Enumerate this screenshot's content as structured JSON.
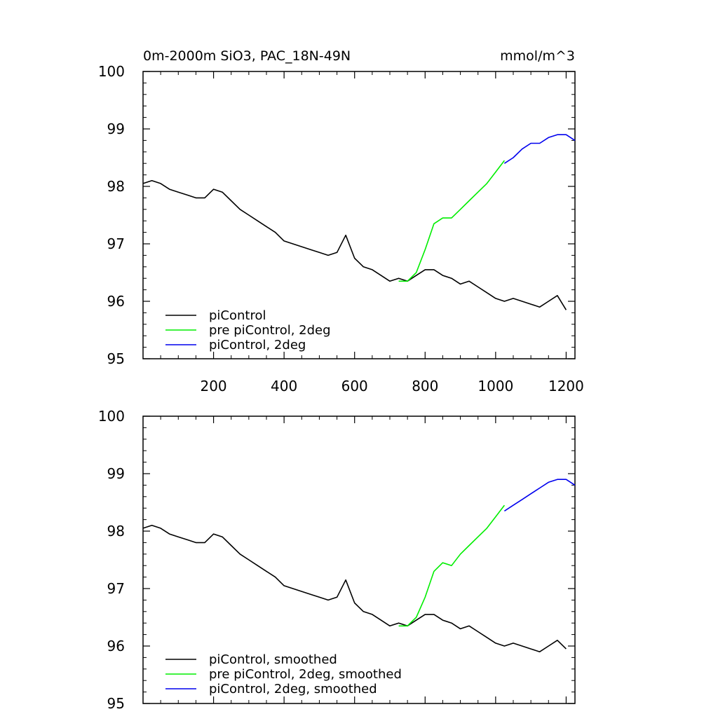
{
  "chart_data": [
    {
      "type": "line",
      "title": "0m-2000m SiO3, PAC_18N-49N",
      "units": "mmol/m^3",
      "xlabel": "",
      "ylabel": "",
      "xlim": [
        0,
        1225
      ],
      "ylim": [
        95,
        100
      ],
      "x_ticks": [
        200,
        400,
        600,
        800,
        1000,
        1200
      ],
      "y_ticks": [
        95,
        96,
        97,
        98,
        99,
        100
      ],
      "x_tick_labels": [
        "200",
        "400",
        "600",
        "800",
        "1000",
        "1200"
      ],
      "y_tick_labels": [
        "95",
        "96",
        "97",
        "98",
        "99",
        "100"
      ],
      "grid": false,
      "legend_position": "bottom-left",
      "series": [
        {
          "name": "piControl",
          "color": "#000000",
          "x": [
            0,
            25,
            50,
            75,
            100,
            125,
            150,
            175,
            200,
            225,
            250,
            275,
            300,
            325,
            350,
            375,
            400,
            425,
            450,
            475,
            500,
            525,
            550,
            575,
            600,
            625,
            650,
            675,
            700,
            725,
            750,
            775,
            800,
            825,
            850,
            875,
            900,
            925,
            950,
            975,
            1000,
            1025,
            1050,
            1075,
            1100,
            1125,
            1150,
            1175,
            1200
          ],
          "y": [
            98.05,
            98.1,
            98.05,
            97.95,
            97.9,
            97.85,
            97.8,
            97.8,
            97.95,
            97.9,
            97.75,
            97.6,
            97.5,
            97.4,
            97.3,
            97.2,
            97.05,
            97.0,
            96.95,
            96.9,
            96.85,
            96.8,
            96.85,
            97.15,
            96.75,
            96.6,
            96.55,
            96.45,
            96.35,
            96.4,
            96.35,
            96.45,
            96.55,
            96.55,
            96.45,
            96.4,
            96.3,
            96.35,
            96.25,
            96.15,
            96.05,
            96.0,
            96.05,
            96.0,
            95.95,
            95.9,
            96.0,
            96.1,
            95.85
          ]
        },
        {
          "name": "pre piControl, 2deg",
          "color": "#00ee00",
          "x": [
            725,
            750,
            775,
            800,
            825,
            850,
            875,
            900,
            925,
            950,
            975,
            1000,
            1025
          ],
          "y": [
            96.35,
            96.35,
            96.5,
            96.9,
            97.35,
            97.45,
            97.45,
            97.6,
            97.75,
            97.9,
            98.05,
            98.25,
            98.45
          ]
        },
        {
          "name": "piControl, 2deg",
          "color": "#0000ee",
          "x": [
            1025,
            1050,
            1075,
            1100,
            1125,
            1150,
            1175,
            1200,
            1225
          ],
          "y": [
            98.4,
            98.5,
            98.65,
            98.75,
            98.75,
            98.85,
            98.9,
            98.9,
            98.8
          ]
        }
      ]
    },
    {
      "type": "line",
      "title": "",
      "xlabel": "",
      "ylabel": "",
      "xlim": [
        0,
        1225
      ],
      "ylim": [
        95,
        100
      ],
      "x_ticks": [
        200,
        400,
        600,
        800,
        1000,
        1200
      ],
      "y_ticks": [
        95,
        96,
        97,
        98,
        99,
        100
      ],
      "x_tick_labels": [],
      "y_tick_labels": [
        "95",
        "96",
        "97",
        "98",
        "99",
        "100"
      ],
      "grid": false,
      "legend_position": "bottom-left",
      "series": [
        {
          "name": "piControl, smoothed",
          "color": "#000000",
          "x": [
            0,
            25,
            50,
            75,
            100,
            125,
            150,
            175,
            200,
            225,
            250,
            275,
            300,
            325,
            350,
            375,
            400,
            425,
            450,
            475,
            500,
            525,
            550,
            575,
            600,
            625,
            650,
            675,
            700,
            725,
            750,
            775,
            800,
            825,
            850,
            875,
            900,
            925,
            950,
            975,
            1000,
            1025,
            1050,
            1075,
            1100,
            1125,
            1150,
            1175,
            1200
          ],
          "y": [
            98.05,
            98.1,
            98.05,
            97.95,
            97.9,
            97.85,
            97.8,
            97.8,
            97.95,
            97.9,
            97.75,
            97.6,
            97.5,
            97.4,
            97.3,
            97.2,
            97.05,
            97.0,
            96.95,
            96.9,
            96.85,
            96.8,
            96.85,
            97.15,
            96.75,
            96.6,
            96.55,
            96.45,
            96.35,
            96.4,
            96.35,
            96.45,
            96.55,
            96.55,
            96.45,
            96.4,
            96.3,
            96.35,
            96.25,
            96.15,
            96.05,
            96.0,
            96.05,
            96.0,
            95.95,
            95.9,
            96.0,
            96.1,
            95.95
          ]
        },
        {
          "name": "pre piControl, 2deg, smoothed",
          "color": "#00ee00",
          "x": [
            725,
            750,
            775,
            800,
            825,
            850,
            875,
            900,
            925,
            950,
            975,
            1000,
            1025
          ],
          "y": [
            96.35,
            96.35,
            96.5,
            96.85,
            97.3,
            97.45,
            97.4,
            97.6,
            97.75,
            97.9,
            98.05,
            98.25,
            98.45
          ]
        },
        {
          "name": "piControl, 2deg, smoothed",
          "color": "#0000ee",
          "x": [
            1025,
            1050,
            1075,
            1100,
            1125,
            1150,
            1175,
            1200,
            1225
          ],
          "y": [
            98.35,
            98.45,
            98.55,
            98.65,
            98.75,
            98.85,
            98.9,
            98.9,
            98.8
          ]
        }
      ]
    }
  ]
}
